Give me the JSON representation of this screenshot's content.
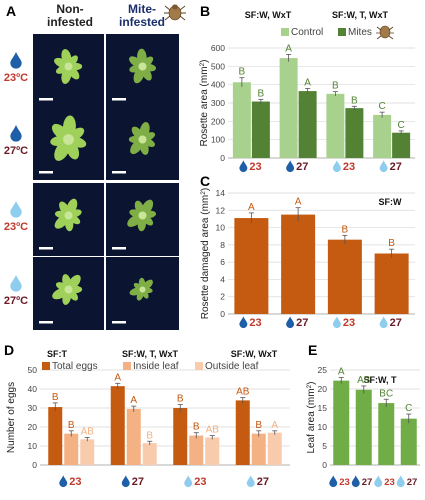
{
  "panels": {
    "A": {
      "label": "A",
      "col_headers": [
        "Non-\ninfested",
        "Mite-\ninfested"
      ],
      "rows": [
        {
          "temp": "23ºC",
          "drop": "dark"
        },
        {
          "temp": "27ºC",
          "drop": "dark"
        },
        {
          "temp": "23ºC",
          "drop": "light"
        },
        {
          "temp": "27ºC",
          "drop": "light"
        }
      ]
    },
    "B": {
      "label": "B"
    },
    "C": {
      "label": "C"
    },
    "D": {
      "label": "D"
    },
    "E": {
      "label": "E"
    }
  },
  "colors": {
    "drop_dark": "#1f5fa8",
    "drop_light": "#8ecdee",
    "temp_23": "#c0392b",
    "temp_27": "#6b1a24",
    "control": "#a9d18e",
    "mites": "#548235",
    "damage": "#c55a11",
    "eggs_total": "#c55a11",
    "eggs_inside": "#f4b183",
    "eggs_outside": "#f8cbad",
    "leaf": "#70ad47",
    "letters_B": "#548235",
    "letters_C": "#c55a11",
    "letters_E": "#548235"
  },
  "chart_data": [
    {
      "panel": "B",
      "type": "bar",
      "stats": [
        "SF:W, WxT",
        "SF:W, T, WxT"
      ],
      "ylabel": "Rosette area (mm²)",
      "ylim": [
        0,
        600
      ],
      "yticks": [
        0,
        100,
        200,
        300,
        400,
        500,
        600
      ],
      "grid": true,
      "legend": "top",
      "categories": [
        {
          "drop": "dark",
          "temp": "23"
        },
        {
          "drop": "dark",
          "temp": "27"
        },
        {
          "drop": "light",
          "temp": "23"
        },
        {
          "drop": "light",
          "temp": "27"
        }
      ],
      "series": [
        {
          "name": "Control",
          "values": [
            413,
            545,
            350,
            235
          ],
          "errors": [
            25,
            20,
            12,
            15
          ],
          "letters": [
            "B",
            "A",
            "B",
            "C"
          ]
        },
        {
          "name": "Mites",
          "values": [
            308,
            365,
            272,
            138
          ],
          "errors": [
            12,
            14,
            10,
            10
          ],
          "letters": [
            "B",
            "A",
            "B",
            "C"
          ]
        }
      ]
    },
    {
      "panel": "C",
      "type": "bar",
      "stats": [
        "SF:W"
      ],
      "ylabel": "Rosette damaged area (mm²)",
      "ylim": [
        0,
        14
      ],
      "yticks": [
        0,
        2,
        4,
        6,
        8,
        10,
        12,
        14
      ],
      "grid": true,
      "categories": [
        {
          "drop": "dark",
          "temp": "23"
        },
        {
          "drop": "dark",
          "temp": "27"
        },
        {
          "drop": "light",
          "temp": "23"
        },
        {
          "drop": "light",
          "temp": "27"
        }
      ],
      "series": [
        {
          "values": [
            11.1,
            11.5,
            8.6,
            7.0
          ],
          "errors": [
            0.6,
            0.8,
            0.5,
            0.5
          ],
          "letters": [
            "A",
            "A",
            "B",
            "B"
          ]
        }
      ]
    },
    {
      "panel": "D",
      "type": "bar",
      "stats": [
        "SF:T",
        "SF:W, T, WxT",
        "SF:W, WxT"
      ],
      "ylabel": "Number of eggs",
      "ylim": [
        0,
        50
      ],
      "yticks": [
        0,
        10,
        20,
        30,
        40,
        50
      ],
      "grid": true,
      "legend": "top",
      "categories": [
        {
          "drop": "dark",
          "temp": "23"
        },
        {
          "drop": "dark",
          "temp": "27"
        },
        {
          "drop": "light",
          "temp": "23"
        },
        {
          "drop": "light",
          "temp": "27"
        }
      ],
      "series": [
        {
          "name": "Total eggs",
          "values": [
            30.5,
            41.5,
            30.0,
            34.0
          ],
          "errors": [
            2.2,
            1.5,
            1.8,
            1.5
          ],
          "letters": [
            "B",
            "A",
            "B",
            "AB"
          ]
        },
        {
          "name": "Inside leaf",
          "values": [
            16.5,
            29.5,
            15.5,
            16.5
          ],
          "errors": [
            1.5,
            1.5,
            1.5,
            1.5
          ],
          "letters": [
            "B",
            "A",
            "B",
            "B"
          ]
        },
        {
          "name": "Outside leaf",
          "values": [
            13.5,
            11.5,
            14.5,
            17.0
          ],
          "errors": [
            1.0,
            1.0,
            1.0,
            1.0
          ],
          "letters": [
            "AB",
            "B",
            "AB",
            "A"
          ]
        }
      ]
    },
    {
      "panel": "E",
      "type": "bar",
      "stats": [
        "SF:W, T"
      ],
      "ylabel": "Leaf area (mm²)",
      "ylim": [
        0,
        25
      ],
      "yticks": [
        0,
        5,
        10,
        15,
        20,
        25
      ],
      "grid": true,
      "categories": [
        {
          "drop": "dark",
          "temp": "23"
        },
        {
          "drop": "dark",
          "temp": "27"
        },
        {
          "drop": "light",
          "temp": "23"
        },
        {
          "drop": "light",
          "temp": "27"
        }
      ],
      "series": [
        {
          "values": [
            22.2,
            19.8,
            16.3,
            12.2
          ],
          "errors": [
            0.8,
            1.0,
            1.0,
            1.2
          ],
          "letters": [
            "A",
            "AB",
            "BC",
            "C"
          ]
        }
      ]
    }
  ]
}
